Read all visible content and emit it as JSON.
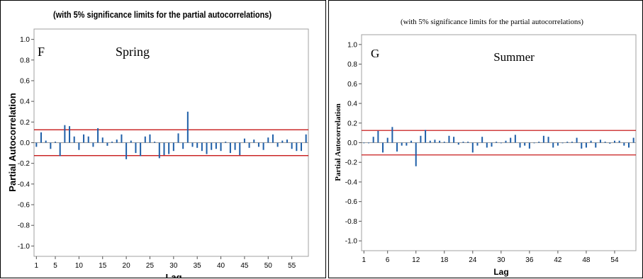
{
  "chart_data": [
    {
      "type": "bar",
      "title": "(with 5% significance limits for the partial autocorrelations)",
      "panel_letter": "F",
      "season_label": "Spring",
      "xlabel": "Lag",
      "ylabel": "Partial Autocorrelation",
      "ylim": [
        -1.1,
        1.1
      ],
      "yticks": [
        "1.0",
        "0.8",
        "0.6",
        "0.4",
        "0.2",
        "0.0",
        "-0.2",
        "-0.4",
        "-0.6",
        "-0.8",
        "-1.0"
      ],
      "xticks": [
        1,
        5,
        10,
        15,
        20,
        25,
        30,
        35,
        40,
        45,
        50,
        55
      ],
      "xlim": [
        0.5,
        58.5
      ],
      "significance_limit": 0.125,
      "lags": [
        1,
        2,
        3,
        4,
        5,
        6,
        7,
        8,
        9,
        10,
        11,
        12,
        13,
        14,
        15,
        16,
        17,
        18,
        19,
        20,
        21,
        22,
        23,
        24,
        25,
        26,
        27,
        28,
        29,
        30,
        31,
        32,
        33,
        34,
        35,
        36,
        37,
        38,
        39,
        40,
        41,
        42,
        43,
        44,
        45,
        46,
        47,
        48,
        49,
        50,
        51,
        52,
        53,
        54,
        55,
        56,
        57,
        58
      ],
      "values": [
        -0.04,
        0.1,
        0.02,
        -0.06,
        0.01,
        -0.13,
        0.17,
        0.16,
        0.06,
        -0.07,
        0.08,
        0.06,
        -0.04,
        0.14,
        0.05,
        -0.03,
        0.01,
        0.03,
        0.08,
        -0.16,
        0.02,
        -0.1,
        -0.13,
        0.06,
        0.08,
        0.01,
        -0.15,
        -0.12,
        -0.11,
        -0.08,
        0.09,
        -0.06,
        0.3,
        -0.04,
        -0.05,
        -0.08,
        -0.11,
        -0.07,
        -0.06,
        -0.08,
        0.01,
        -0.1,
        -0.07,
        -0.12,
        0.04,
        -0.05,
        0.03,
        -0.04,
        -0.07,
        0.05,
        0.08,
        -0.04,
        0.02,
        0.03,
        -0.06,
        -0.08,
        -0.08,
        0.08
      ]
    },
    {
      "type": "bar",
      "title": "(with 5% significance limits for the partial autocorrelations)",
      "panel_letter": "G",
      "season_label": "Summer",
      "xlabel": "Lag",
      "ylabel": "Partial Autocorrelation",
      "ylim": [
        -1.1,
        1.1
      ],
      "yticks": [
        "1.0",
        "0.8",
        "0.6",
        "0.4",
        "0.2",
        "0.0",
        "-0.2",
        "-0.4",
        "-0.6",
        "-0.8",
        "-1.0"
      ],
      "xticks": [
        1,
        6,
        12,
        18,
        24,
        30,
        36,
        42,
        48,
        54
      ],
      "xlim": [
        0.5,
        58.5
      ],
      "significance_limit": 0.125,
      "lags": [
        1,
        2,
        3,
        4,
        5,
        6,
        7,
        8,
        9,
        10,
        11,
        12,
        13,
        14,
        15,
        16,
        17,
        18,
        19,
        20,
        21,
        22,
        23,
        24,
        25,
        26,
        27,
        28,
        29,
        30,
        31,
        32,
        33,
        34,
        35,
        36,
        37,
        38,
        39,
        40,
        41,
        42,
        43,
        44,
        45,
        46,
        47,
        48,
        49,
        50,
        51,
        52,
        53,
        54,
        55,
        56,
        57,
        58
      ],
      "values": [
        0.0,
        0.0,
        0.06,
        0.12,
        -0.1,
        0.05,
        0.16,
        -0.09,
        -0.03,
        -0.03,
        0.02,
        -0.24,
        0.07,
        0.13,
        0.02,
        0.03,
        0.02,
        0.01,
        0.07,
        0.06,
        -0.02,
        0.01,
        0.01,
        -0.1,
        -0.03,
        0.06,
        -0.05,
        -0.04,
        0.01,
        0.0,
        0.02,
        0.05,
        0.08,
        -0.05,
        -0.03,
        -0.06,
        0.0,
        0.01,
        0.07,
        0.06,
        -0.05,
        -0.03,
        0.0,
        0.01,
        0.01,
        0.05,
        -0.06,
        -0.05,
        0.02,
        -0.05,
        0.03,
        0.01,
        -0.01,
        0.02,
        0.02,
        -0.03,
        -0.05,
        0.05
      ]
    }
  ]
}
